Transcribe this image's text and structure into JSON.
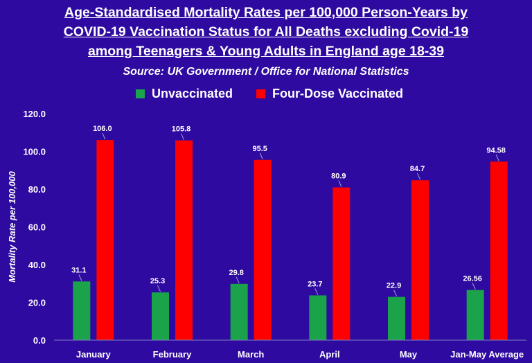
{
  "title_lines": [
    "Age-Standardised Mortality Rates per 100,000 Person-Years by",
    "COVID-19 Vaccination Status for All Deaths excluding Covid-19",
    "among Teenagers & Young Adults in England age 18-39"
  ],
  "subtitle": "Source: UK Government / Office for National Statistics",
  "colors": {
    "background": "#2e0aa0",
    "unvaccinated": "#1aa34a",
    "vaccinated": "#ff0000",
    "text": "#ffffff"
  },
  "chart_data": {
    "type": "bar",
    "categories": [
      "January",
      "February",
      "March",
      "April",
      "May",
      "Jan-May Average"
    ],
    "series": [
      {
        "name": "Unvaccinated",
        "values": [
          31.1,
          25.3,
          29.8,
          23.7,
          22.9,
          26.56
        ],
        "labels": [
          "31.1",
          "25.3",
          "29.8",
          "23.7",
          "22.9",
          "26.56"
        ]
      },
      {
        "name": "Four-Dose Vaccinated",
        "values": [
          106.0,
          105.8,
          95.5,
          80.9,
          84.7,
          94.58
        ],
        "labels": [
          "106.0",
          "105.8",
          "95.5",
          "80.9",
          "84.7",
          "94.58"
        ]
      }
    ],
    "ylabel": "Mortality Rate per 100,000",
    "ylim": [
      0,
      120
    ],
    "yticks": [
      "0.0",
      "20.0",
      "40.0",
      "60.0",
      "80.0",
      "100.0",
      "120.0"
    ],
    "legend": "top-center",
    "grid": false
  }
}
